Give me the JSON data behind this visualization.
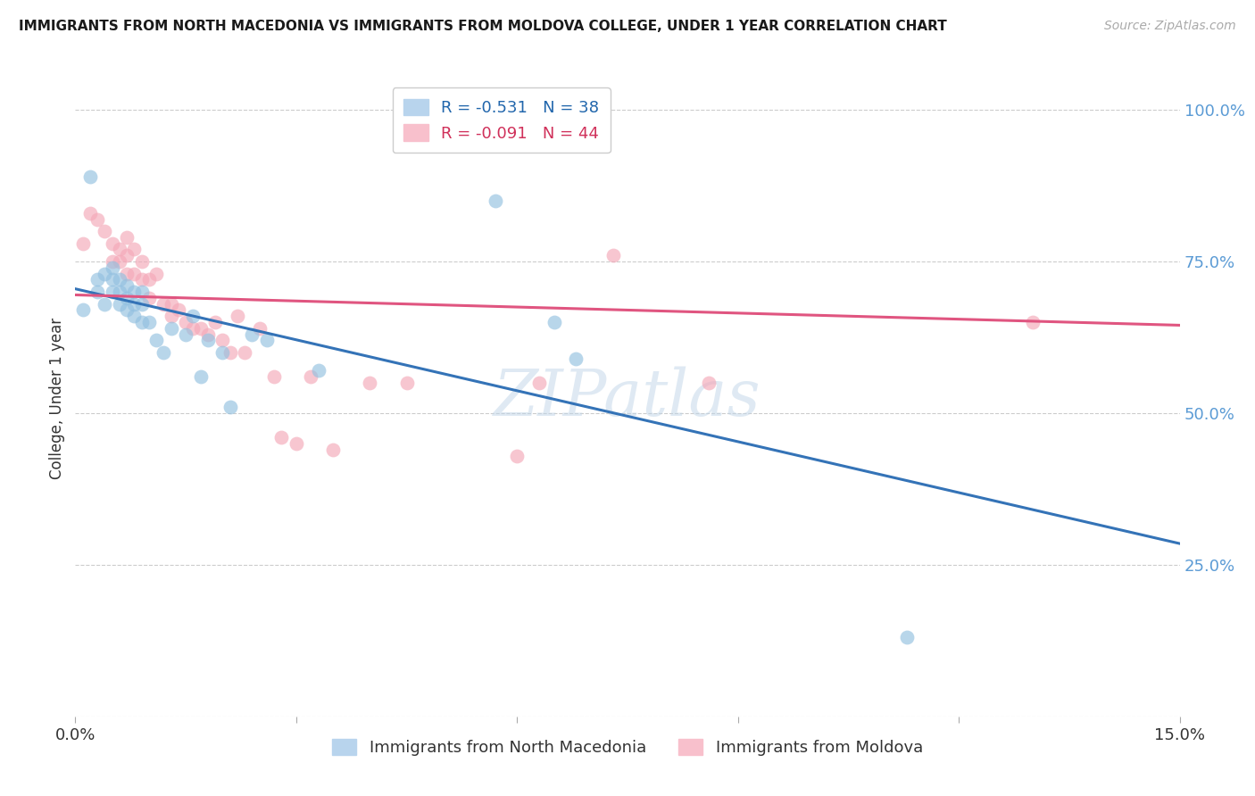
{
  "title": "IMMIGRANTS FROM NORTH MACEDONIA VS IMMIGRANTS FROM MOLDOVA COLLEGE, UNDER 1 YEAR CORRELATION CHART",
  "source": "Source: ZipAtlas.com",
  "ylabel": "College, Under 1 year",
  "y_ticks": [
    0.0,
    0.25,
    0.5,
    0.75,
    1.0
  ],
  "y_tick_labels": [
    "",
    "25.0%",
    "50.0%",
    "75.0%",
    "100.0%"
  ],
  "x_ticks": [
    0.0,
    0.03,
    0.06,
    0.09,
    0.12,
    0.15
  ],
  "xlim": [
    0.0,
    0.15
  ],
  "ylim": [
    0.0,
    1.05
  ],
  "legend_label1": "Immigrants from North Macedonia",
  "legend_label2": "Immigrants from Moldova",
  "blue_color": "#92c0e0",
  "pink_color": "#f4a8b8",
  "blue_line_color": "#3473b7",
  "pink_line_color": "#e05580",
  "blue_line": [
    0.0,
    0.705,
    0.15,
    0.285
  ],
  "pink_line": [
    0.0,
    0.695,
    0.15,
    0.645
  ],
  "blue_scatter_x": [
    0.001,
    0.002,
    0.003,
    0.003,
    0.004,
    0.004,
    0.005,
    0.005,
    0.005,
    0.006,
    0.006,
    0.006,
    0.007,
    0.007,
    0.007,
    0.008,
    0.008,
    0.008,
    0.009,
    0.009,
    0.009,
    0.01,
    0.011,
    0.012,
    0.013,
    0.015,
    0.016,
    0.017,
    0.018,
    0.02,
    0.021,
    0.024,
    0.026,
    0.033,
    0.057,
    0.065,
    0.068,
    0.113
  ],
  "blue_scatter_y": [
    0.67,
    0.89,
    0.7,
    0.72,
    0.73,
    0.68,
    0.74,
    0.72,
    0.7,
    0.72,
    0.7,
    0.68,
    0.71,
    0.69,
    0.67,
    0.7,
    0.68,
    0.66,
    0.7,
    0.68,
    0.65,
    0.65,
    0.62,
    0.6,
    0.64,
    0.63,
    0.66,
    0.56,
    0.62,
    0.6,
    0.51,
    0.63,
    0.62,
    0.57,
    0.85,
    0.65,
    0.59,
    0.13
  ],
  "pink_scatter_x": [
    0.001,
    0.002,
    0.003,
    0.004,
    0.005,
    0.005,
    0.006,
    0.006,
    0.007,
    0.007,
    0.007,
    0.008,
    0.008,
    0.009,
    0.009,
    0.01,
    0.01,
    0.011,
    0.012,
    0.013,
    0.013,
    0.014,
    0.015,
    0.016,
    0.017,
    0.018,
    0.019,
    0.02,
    0.021,
    0.022,
    0.023,
    0.025,
    0.027,
    0.028,
    0.03,
    0.032,
    0.035,
    0.04,
    0.045,
    0.06,
    0.063,
    0.073,
    0.086,
    0.13
  ],
  "pink_scatter_y": [
    0.78,
    0.83,
    0.82,
    0.8,
    0.78,
    0.75,
    0.77,
    0.75,
    0.79,
    0.76,
    0.73,
    0.77,
    0.73,
    0.75,
    0.72,
    0.72,
    0.69,
    0.73,
    0.68,
    0.68,
    0.66,
    0.67,
    0.65,
    0.64,
    0.64,
    0.63,
    0.65,
    0.62,
    0.6,
    0.66,
    0.6,
    0.64,
    0.56,
    0.46,
    0.45,
    0.56,
    0.44,
    0.55,
    0.55,
    0.43,
    0.55,
    0.76,
    0.55,
    0.65
  ],
  "watermark": "ZIPatlas",
  "background_color": "#ffffff",
  "grid_color": "#cccccc"
}
